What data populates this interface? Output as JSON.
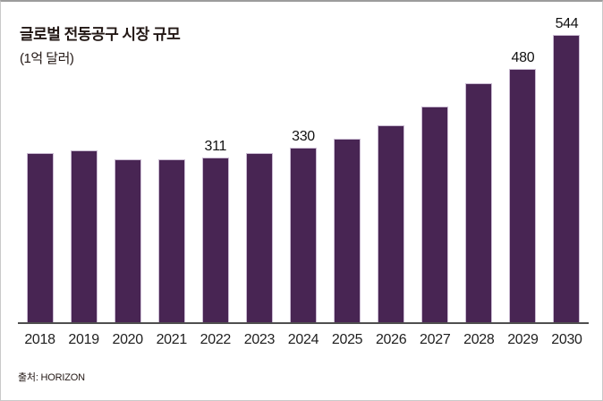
{
  "window": {
    "background": "#ffffff",
    "border_top_color": "#9c9c9c",
    "border_side_color": "#c9c9c9"
  },
  "header": {
    "title": "글로벌 전동공구 시장 규모",
    "subtitle": "(1억 달러)"
  },
  "source": {
    "label": "출처: HORIZON"
  },
  "chart_data": {
    "type": "bar",
    "title": "글로벌 전동공구 시장 규모",
    "unit_label": "(1억 달러)",
    "source_label": "출처: HORIZON",
    "categories": [
      "2018",
      "2019",
      "2020",
      "2021",
      "2022",
      "2023",
      "2024",
      "2025",
      "2026",
      "2027",
      "2028",
      "2029",
      "2030"
    ],
    "values": [
      320,
      326,
      308,
      309,
      311,
      320,
      330,
      347,
      372,
      409,
      452,
      480,
      544
    ],
    "data_labels": {
      "2022": "311",
      "2024": "330",
      "2029": "480",
      "2030": "544"
    },
    "ylim": [
      0,
      560
    ],
    "grid": false,
    "legend": "none",
    "bar_color": "#482553",
    "bar_border_color": "#cabbd2",
    "axis_line_color": "#4f4f4f",
    "value_label_color": "#111111",
    "tick_label_color": "#1f1f1f",
    "title_color": "#231815"
  }
}
